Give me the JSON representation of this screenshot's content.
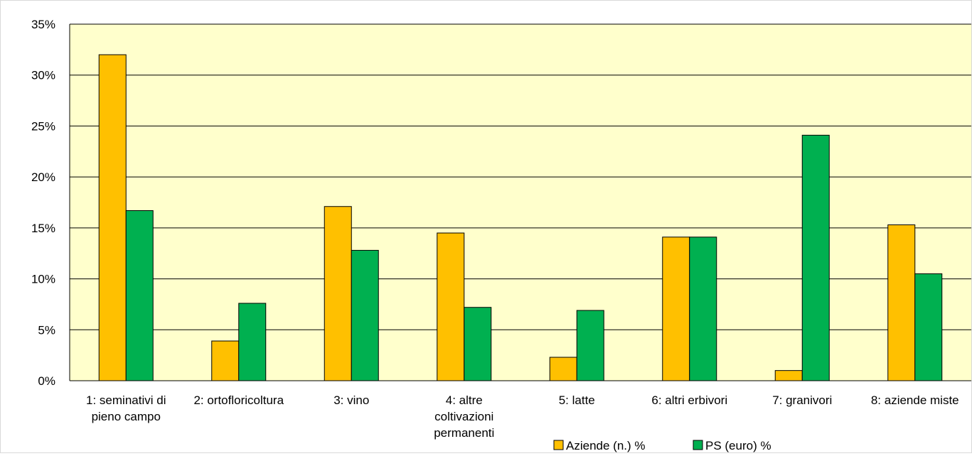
{
  "chart_data": {
    "type": "bar",
    "title": "",
    "xlabel": "",
    "ylabel": "",
    "ylim": [
      0,
      35
    ],
    "yticks": [
      0,
      5,
      10,
      15,
      20,
      25,
      30,
      35
    ],
    "ytick_labels": [
      "0%",
      "5%",
      "10%",
      "15%",
      "20%",
      "25%",
      "30%",
      "35%"
    ],
    "categories": [
      "1: seminativi di pieno campo",
      "2: ortofloricoltura",
      "3: vino",
      "4: altre coltivazioni permanenti",
      "5: latte",
      "6: altri erbivori",
      "7: granivori",
      "8: aziende miste"
    ],
    "category_lines": [
      [
        "1: seminativi di",
        "pieno campo"
      ],
      [
        "2: ortofloricoltura"
      ],
      [
        "3: vino"
      ],
      [
        "4: altre",
        "coltivazioni",
        "permanenti"
      ],
      [
        "5: latte"
      ],
      [
        "6: altri erbivori"
      ],
      [
        "7: granivori"
      ],
      [
        "8: aziende miste"
      ]
    ],
    "series": [
      {
        "name": "Aziende (n.) %",
        "color": "#FFC000",
        "values": [
          32.0,
          3.9,
          17.1,
          14.5,
          2.3,
          14.1,
          1.0,
          15.3
        ]
      },
      {
        "name": "PS (euro) %",
        "color": "#00B050",
        "values": [
          16.7,
          7.6,
          12.8,
          7.2,
          6.9,
          14.1,
          24.1,
          10.5
        ]
      }
    ],
    "plot_background": "#FFFFCC",
    "grid": true,
    "legend_position": "bottom"
  }
}
